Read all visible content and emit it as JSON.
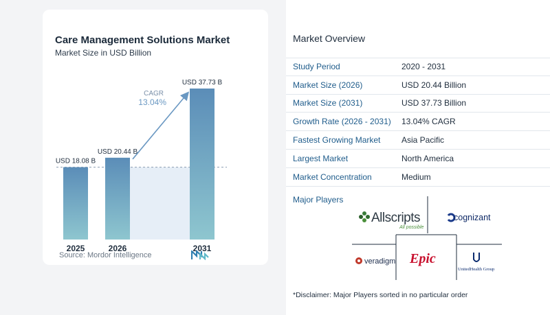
{
  "chart": {
    "title": "Care Management Solutions Market",
    "subtitle": "Market Size in USD Billion",
    "source": "Source:  Mordor Intelligence",
    "cagr_label": "CAGR",
    "cagr_value": "13.04%",
    "colors": {
      "bar_top": "#5b8db8",
      "bar_bottom": "#8ec6cf",
      "band": "#e6eef7",
      "arrow": "#6a98c2",
      "cagr": "#7a8fa8"
    }
  },
  "chart_data": {
    "type": "bar",
    "categories": [
      "2025",
      "2026",
      "2031"
    ],
    "values": [
      18.08,
      20.44,
      37.73
    ],
    "value_labels": [
      "USD 18.08 B",
      "USD 20.44 B",
      "USD 37.73 B"
    ],
    "title": "Care Management Solutions Market",
    "subtitle": "Market Size in USD Billion",
    "ylim": [
      0,
      37.73
    ],
    "grid": false
  },
  "overview": {
    "title": "Market Overview",
    "rows": [
      {
        "label": "Study Period",
        "value": "2020 - 2031"
      },
      {
        "label": "Market Size (2026)",
        "value": "USD 20.44 Billion"
      },
      {
        "label": "Market Size (2031)",
        "value": "USD 37.73 Billion"
      },
      {
        "label": "Growth Rate (2026 - 2031)",
        "value": "13.04% CAGR"
      },
      {
        "label": "Fastest Growing Market",
        "value": "Asia Pacific"
      },
      {
        "label": "Largest Market",
        "value": "North America"
      },
      {
        "label": "Market Concentration",
        "value": "Medium"
      }
    ]
  },
  "players": {
    "title": "Major Players",
    "allscripts": "Allscripts",
    "allscripts_tag": "All possible",
    "cognizant": "cognizant",
    "veradigm": "veradigm",
    "epic": "Epic",
    "unitedhealth": "UnitedHealth Group",
    "disclaimer": "*Disclaimer: Major Players sorted in no particular order"
  }
}
